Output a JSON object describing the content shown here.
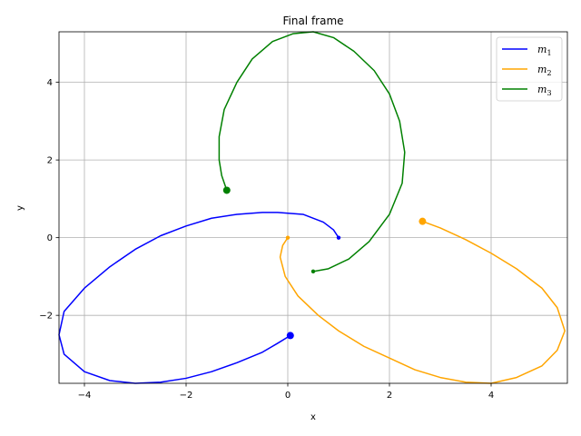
{
  "chart_data": {
    "type": "line",
    "title": "Final frame",
    "xlabel": "x",
    "ylabel": "y",
    "xlim": [
      -4.5,
      5.5
    ],
    "ylim": [
      -3.75,
      5.3
    ],
    "xticks": [
      -4,
      -2,
      0,
      2,
      4
    ],
    "yticks": [
      -2,
      0,
      2,
      4
    ],
    "grid": true,
    "legend": {
      "placement": "top-right"
    },
    "series": [
      {
        "name": "m_1",
        "label_base": "m",
        "label_sub": "1",
        "color": "#0000ff",
        "start": [
          1.0,
          0.0
        ],
        "end": [
          0.05,
          -2.52
        ],
        "points": [
          [
            1.0,
            0.0
          ],
          [
            0.9,
            0.2
          ],
          [
            0.7,
            0.4
          ],
          [
            0.3,
            0.6
          ],
          [
            -0.2,
            0.65
          ],
          [
            -0.5,
            0.65
          ],
          [
            -1.0,
            0.6
          ],
          [
            -1.5,
            0.5
          ],
          [
            -2.0,
            0.3
          ],
          [
            -2.5,
            0.05
          ],
          [
            -3.0,
            -0.3
          ],
          [
            -3.5,
            -0.75
          ],
          [
            -4.0,
            -1.3
          ],
          [
            -4.4,
            -1.9
          ],
          [
            -4.5,
            -2.5
          ],
          [
            -4.4,
            -3.0
          ],
          [
            -4.0,
            -3.45
          ],
          [
            -3.5,
            -3.68
          ],
          [
            -3.0,
            -3.75
          ],
          [
            -2.5,
            -3.72
          ],
          [
            -2.0,
            -3.62
          ],
          [
            -1.5,
            -3.45
          ],
          [
            -1.0,
            -3.22
          ],
          [
            -0.5,
            -2.95
          ],
          [
            -0.2,
            -2.72
          ],
          [
            0.05,
            -2.52
          ]
        ]
      },
      {
        "name": "m_2",
        "label_base": "m",
        "label_sub": "2",
        "color": "#ffa500",
        "start": [
          0.0,
          0.0
        ],
        "end": [
          2.65,
          0.42
        ],
        "points": [
          [
            0.0,
            0.0
          ],
          [
            -0.1,
            -0.2
          ],
          [
            -0.15,
            -0.5
          ],
          [
            -0.05,
            -1.0
          ],
          [
            0.2,
            -1.5
          ],
          [
            0.6,
            -2.0
          ],
          [
            1.0,
            -2.4
          ],
          [
            1.5,
            -2.8
          ],
          [
            2.0,
            -3.1
          ],
          [
            2.5,
            -3.4
          ],
          [
            3.0,
            -3.6
          ],
          [
            3.5,
            -3.72
          ],
          [
            4.0,
            -3.75
          ],
          [
            4.5,
            -3.6
          ],
          [
            5.0,
            -3.3
          ],
          [
            5.3,
            -2.9
          ],
          [
            5.45,
            -2.4
          ],
          [
            5.3,
            -1.8
          ],
          [
            5.0,
            -1.3
          ],
          [
            4.5,
            -0.8
          ],
          [
            4.0,
            -0.4
          ],
          [
            3.5,
            -0.05
          ],
          [
            3.0,
            0.25
          ],
          [
            2.65,
            0.42
          ]
        ]
      },
      {
        "name": "m_3",
        "label_base": "m",
        "label_sub": "3",
        "color": "#008000",
        "start": [
          0.5,
          -0.87
        ],
        "end": [
          -1.2,
          1.22
        ],
        "points": [
          [
            0.5,
            -0.87
          ],
          [
            0.8,
            -0.8
          ],
          [
            1.2,
            -0.55
          ],
          [
            1.6,
            -0.1
          ],
          [
            2.0,
            0.6
          ],
          [
            2.25,
            1.4
          ],
          [
            2.3,
            2.2
          ],
          [
            2.2,
            3.0
          ],
          [
            2.0,
            3.7
          ],
          [
            1.7,
            4.3
          ],
          [
            1.3,
            4.8
          ],
          [
            0.9,
            5.15
          ],
          [
            0.5,
            5.3
          ],
          [
            0.1,
            5.25
          ],
          [
            -0.3,
            5.05
          ],
          [
            -0.7,
            4.6
          ],
          [
            -1.0,
            4.0
          ],
          [
            -1.25,
            3.3
          ],
          [
            -1.35,
            2.6
          ],
          [
            -1.35,
            2.0
          ],
          [
            -1.3,
            1.6
          ],
          [
            -1.2,
            1.22
          ]
        ]
      }
    ]
  }
}
